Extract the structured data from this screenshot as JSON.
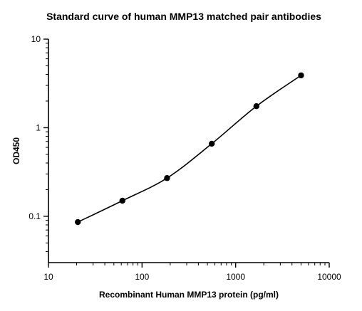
{
  "chart_data": {
    "type": "scatter",
    "title": "Standard curve of human MMP13 matched pair antibodies",
    "xlabel": "Recombinant Human MMP13 protein (pg/ml)",
    "ylabel": "OD450",
    "x_scale": "log",
    "y_scale": "log",
    "xlim": [
      10,
      10000
    ],
    "ylim": [
      0.03,
      10
    ],
    "x_ticks": [
      {
        "value": 10,
        "label": "10"
      },
      {
        "value": 100,
        "label": "100"
      },
      {
        "value": 1000,
        "label": "1000"
      },
      {
        "value": 10000,
        "label": "10000"
      }
    ],
    "y_ticks": [
      {
        "value": 0.1,
        "label": "0.1"
      },
      {
        "value": 1,
        "label": "1"
      },
      {
        "value": 10,
        "label": "10"
      }
    ],
    "grid": false,
    "legend": "none",
    "series": [
      {
        "points": [
          {
            "x": 20.6,
            "y": 0.086
          },
          {
            "x": 61.7,
            "y": 0.15
          },
          {
            "x": 185,
            "y": 0.27
          },
          {
            "x": 556,
            "y": 0.66
          },
          {
            "x": 1667,
            "y": 1.75
          },
          {
            "x": 5000,
            "y": 3.9
          }
        ],
        "fit": "4PL",
        "color": "#000000"
      }
    ]
  }
}
